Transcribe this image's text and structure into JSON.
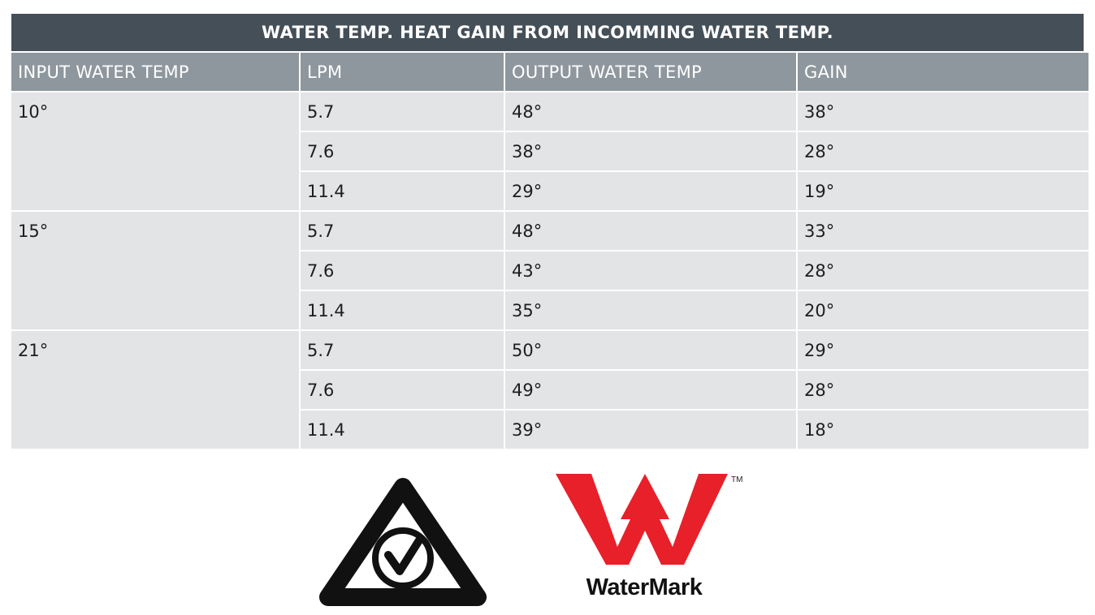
{
  "table": {
    "title": "WATER TEMP. HEAT GAIN FROM INCOMMING WATER TEMP.",
    "headers": [
      "INPUT WATER TEMP",
      "LPM",
      "OUTPUT WATER TEMP",
      "GAIN"
    ],
    "groups": [
      {
        "input": "10°",
        "rows": [
          {
            "lpm": "5.7",
            "output": "48°",
            "gain": "38°"
          },
          {
            "lpm": "7.6",
            "output": "38°",
            "gain": "28°"
          },
          {
            "lpm": "11.4",
            "output": "29°",
            "gain": "19°"
          }
        ]
      },
      {
        "input": "15°",
        "rows": [
          {
            "lpm": "5.7",
            "output": "48°",
            "gain": "33°"
          },
          {
            "lpm": "7.6",
            "output": "43°",
            "gain": "28°"
          },
          {
            "lpm": "11.4",
            "output": "35°",
            "gain": "20°"
          }
        ]
      },
      {
        "input": "21°",
        "rows": [
          {
            "lpm": "5.7",
            "output": "50°",
            "gain": "29°"
          },
          {
            "lpm": "7.6",
            "output": "49°",
            "gain": "28°"
          },
          {
            "lpm": "11.4",
            "output": "39°",
            "gain": "18°"
          }
        ]
      }
    ]
  },
  "logos": {
    "rcm": {
      "icon": "rcm-compliance-icon"
    },
    "watermark": {
      "icon": "watermark-w-icon",
      "text": "WaterMark",
      "tm": "TM",
      "color": "#e8202a"
    }
  }
}
